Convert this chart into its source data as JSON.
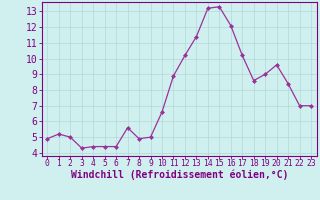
{
  "x": [
    0,
    1,
    2,
    3,
    4,
    5,
    6,
    7,
    8,
    9,
    10,
    11,
    12,
    13,
    14,
    15,
    16,
    17,
    18,
    19,
    20,
    21,
    22,
    23
  ],
  "y": [
    4.9,
    5.2,
    5.0,
    4.3,
    4.4,
    4.4,
    4.4,
    5.6,
    4.9,
    5.0,
    6.6,
    8.9,
    10.2,
    11.4,
    13.2,
    13.3,
    12.1,
    10.2,
    8.6,
    9.0,
    9.6,
    8.4,
    7.0,
    7.0
  ],
  "line_color": "#993399",
  "marker_color": "#993399",
  "bg_color": "#d0f0f0",
  "plot_bg_color": "#d0f0f0",
  "grid_color": "#b0d8d8",
  "xlabel": "Windchill (Refroidissement éolien,°C)",
  "ylabel_ticks": [
    4,
    5,
    6,
    7,
    8,
    9,
    10,
    11,
    12,
    13
  ],
  "xlim": [
    -0.5,
    23.5
  ],
  "ylim": [
    3.8,
    13.6
  ],
  "xticks": [
    0,
    1,
    2,
    3,
    4,
    5,
    6,
    7,
    8,
    9,
    10,
    11,
    12,
    13,
    14,
    15,
    16,
    17,
    18,
    19,
    20,
    21,
    22,
    23
  ],
  "tick_color": "#800080",
  "label_color": "#800080",
  "spine_color": "#800080",
  "font_size_xlabel": 7.0,
  "font_size_ytick": 7.0,
  "font_size_xtick": 5.8,
  "linewidth": 0.9,
  "markersize": 2.0
}
